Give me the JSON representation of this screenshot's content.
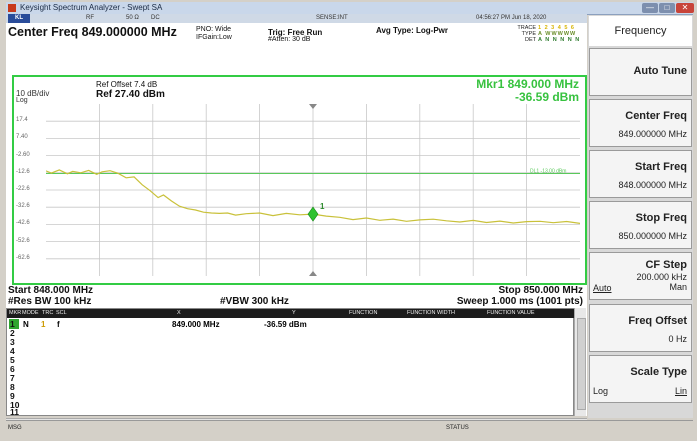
{
  "window": {
    "title": "Keysight Spectrum Analyzer - Swept SA",
    "min_glyph": "—",
    "max_glyph": "□",
    "close_glyph": "✕"
  },
  "status_strip": {
    "kl": "KL",
    "rf": "RF",
    "impedance": "50 Ω",
    "dc": "DC",
    "sense": "SENSE:INT",
    "time": "04:56:27 PM Jun 18, 2020"
  },
  "header": {
    "center_freq": "Center Freq 849.000000 MHz",
    "pno": "PNO: Wide",
    "ifgain": "IFGain:Low",
    "trig": "Trig: Free Run",
    "atten": "#Atten: 30 dB",
    "avg_type": "Avg Type: Log-Pwr",
    "trace_label": "TRACE",
    "trace_values": "1 2 3 4 5 6",
    "type_label": "TYPE",
    "type_values": "A WWWWW",
    "det_label": "DET",
    "det_values": "A N N N N N"
  },
  "trace_panel": {
    "ref_offset": "Ref Offset 7.4 dB",
    "ref_level": "Ref 27.40 dBm",
    "scale": "10 dB/div",
    "scale_type": "Log",
    "marker_freq": "Mkr1 849.000 MHz",
    "marker_amp": "-36.59 dBm",
    "y_ticks": [
      "17.4",
      "7.40",
      "-2.60",
      "-12.6",
      "-22.6",
      "-32.6",
      "-42.6",
      "-52.6",
      "-62.6"
    ],
    "limit_label": "DL1 -13.00 dBm",
    "marker_number": "1"
  },
  "chart_data": {
    "type": "line",
    "x_start_mhz": 848.0,
    "x_stop_mhz": 850.0,
    "ylim": [
      -72.6,
      27.4
    ],
    "display_line_dbm": -13.0,
    "marker": {
      "x_mhz": 849.0,
      "y_dbm": -36.59
    },
    "series": [
      {
        "x": [
          848.0,
          848.02,
          848.05,
          848.08,
          848.1,
          848.13,
          848.16,
          848.19,
          848.21,
          848.24,
          848.27,
          848.3,
          848.33,
          848.36,
          848.39,
          848.42,
          848.44,
          848.47,
          848.5,
          848.53,
          848.56,
          848.59,
          848.62,
          848.65,
          848.68,
          848.71,
          848.75,
          848.8,
          848.85,
          848.9,
          848.95,
          849.0,
          849.05,
          849.1,
          849.15,
          849.2,
          849.25,
          849.3,
          849.35,
          849.4,
          849.45,
          849.5,
          849.55,
          849.6,
          849.65,
          849.7,
          849.75,
          849.8,
          849.85,
          849.9,
          849.95,
          850.0
        ],
        "y": [
          -11.5,
          -12.8,
          -10.9,
          -13.2,
          -11.8,
          -12.6,
          -11.2,
          -13.5,
          -12.0,
          -11.4,
          -12.9,
          -15.5,
          -15.0,
          -19.5,
          -23.0,
          -27.0,
          -25.5,
          -29.0,
          -32.0,
          -33.5,
          -34.2,
          -35.5,
          -36.0,
          -36.2,
          -36.0,
          -37.2,
          -36.4,
          -36.0,
          -37.5,
          -36.2,
          -37.0,
          -36.59,
          -37.8,
          -38.5,
          -39.8,
          -38.9,
          -40.2,
          -39.5,
          -40.8,
          -40.0,
          -39.6,
          -40.5,
          -41.2,
          -40.3,
          -41.5,
          -40.7,
          -41.8,
          -41.0,
          -40.8,
          -41.6,
          -40.9,
          -42.0
        ]
      }
    ]
  },
  "footer": {
    "start": "Start 848.000 MHz",
    "stop": "Stop 850.000 MHz",
    "rbw": "#Res BW 100 kHz",
    "vbw": "#VBW 300 kHz",
    "sweep": "Sweep  1.000 ms (1001 pts)"
  },
  "marker_table": {
    "headers": [
      "MKR",
      "MODE",
      "TRC",
      "SCL",
      "X",
      "Y",
      "FUNCTION",
      "FUNCTION WIDTH",
      "FUNCTION VALUE"
    ],
    "row1": {
      "num": "1",
      "mode": "N",
      "trc": "1",
      "scl": "f",
      "x": "849.000 MHz",
      "y": "-36.59 dBm"
    },
    "row_numbers": [
      "2",
      "3",
      "4",
      "5",
      "6",
      "7",
      "8",
      "9",
      "10",
      "11"
    ]
  },
  "statusbar": {
    "msg": "MSG",
    "status": "STATUS"
  },
  "softkeys": {
    "title": "Frequency",
    "auto_tune": "Auto Tune",
    "center_freq": {
      "label": "Center Freq",
      "value": "849.000000 MHz"
    },
    "start_freq": {
      "label": "Start Freq",
      "value": "848.000000 MHz"
    },
    "stop_freq": {
      "label": "Stop Freq",
      "value": "850.000000 MHz"
    },
    "cf_step": {
      "label": "CF Step",
      "value": "200.000 kHz",
      "auto": "Auto",
      "man": "Man"
    },
    "freq_offset": {
      "label": "Freq Offset",
      "value": "0 Hz"
    },
    "scale_type": {
      "label": "Scale Type",
      "log": "Log",
      "lin": "Lin"
    }
  },
  "colors": {
    "trace": "#c9c13a",
    "display_line": "#59c95a",
    "marker": "#2fc22f",
    "frame_green": "#33cc44"
  }
}
